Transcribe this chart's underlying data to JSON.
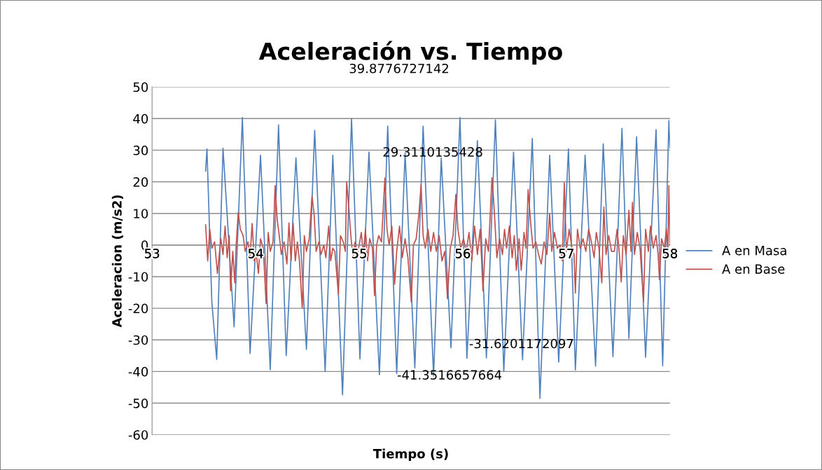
{
  "chart_data": {
    "type": "line",
    "title": "Aceleración vs. Tiempo",
    "xlabel": "Tiempo (s)",
    "ylabel": "Aceleracion (m/s2)",
    "xlim": [
      53,
      58
    ],
    "xticks": [
      53,
      54,
      55,
      56,
      57,
      58
    ],
    "ylim": [
      -60,
      50
    ],
    "yticks": [
      -60,
      -50,
      -40,
      -30,
      -20,
      -10,
      0,
      10,
      20,
      30,
      40,
      50
    ],
    "grid": "y",
    "legend": "right",
    "marker": "none",
    "line_style": "solid",
    "annotations": [
      "39.8776727142",
      "29.3110135428",
      "-31.6201172097",
      "-41.3516657664"
    ],
    "series": [
      {
        "name": "A en Masa",
        "color": "#4f81bd",
        "x": [
          53.517,
          53.53,
          53.577,
          53.624,
          53.685,
          53.792,
          53.872,
          53.946,
          54.047,
          54.141,
          54.221,
          54.295,
          54.389,
          54.49,
          54.57,
          54.671,
          54.745,
          54.839,
          54.926,
          55.007,
          55.094,
          55.195,
          55.275,
          55.362,
          55.443,
          55.537,
          55.617,
          55.718,
          55.792,
          55.886,
          55.973,
          56.04,
          56.141,
          56.228,
          56.315,
          56.396,
          56.49,
          56.577,
          56.671,
          56.745,
          56.839,
          56.926,
          57.02,
          57.087,
          57.181,
          57.282,
          57.356,
          57.45,
          57.537,
          57.604,
          57.678,
          57.765,
          57.866,
          57.93,
          57.99,
          58.0
        ],
        "values": [
          23.4,
          30.4,
          -18,
          -36.2,
          30.6,
          -25.9,
          40.3,
          -34.3,
          28.4,
          -39.4,
          38,
          -35,
          27.6,
          -33,
          36.3,
          -40,
          28.4,
          -47.4,
          40,
          -36,
          29.4,
          -41,
          37.6,
          -40.6,
          29,
          -38.9,
          37.6,
          -41.4,
          27.5,
          -32.5,
          40.3,
          -35.8,
          33,
          -35.7,
          39.6,
          -40,
          29.4,
          -36.3,
          33.7,
          -48.5,
          28.4,
          -37,
          30.4,
          -39.5,
          28.4,
          -38.3,
          32,
          -35.3,
          36.9,
          -29.5,
          34.2,
          -35.5,
          36.5,
          -38.2,
          39.4,
          30.7
        ]
      },
      {
        "name": "A en Base",
        "color": "#c0504d",
        "x": [
          53.517,
          53.537,
          53.557,
          53.577,
          53.604,
          53.631,
          53.664,
          53.685,
          53.705,
          53.725,
          53.745,
          53.758,
          53.779,
          53.799,
          53.812,
          53.832,
          53.852,
          53.879,
          53.899,
          53.926,
          53.946,
          53.966,
          53.987,
          54.007,
          54.027,
          54.047,
          54.074,
          54.101,
          54.121,
          54.141,
          54.168,
          54.188,
          54.208,
          54.228,
          54.248,
          54.275,
          54.302,
          54.322,
          54.342,
          54.362,
          54.383,
          54.403,
          54.423,
          54.45,
          54.47,
          54.49,
          54.517,
          54.544,
          54.564,
          54.584,
          54.611,
          54.631,
          54.658,
          54.678,
          54.705,
          54.725,
          54.745,
          54.765,
          54.799,
          54.819,
          54.846,
          54.866,
          54.879,
          54.899,
          54.919,
          54.94,
          54.96,
          54.98,
          55.0,
          55.02,
          55.04,
          55.06,
          55.081,
          55.101,
          55.128,
          55.148,
          55.168,
          55.188,
          55.215,
          55.248,
          55.268,
          55.289,
          55.315,
          55.342,
          55.362,
          55.389,
          55.416,
          55.443,
          55.47,
          55.503,
          55.523,
          55.55,
          55.577,
          55.597,
          55.617,
          55.638,
          55.664,
          55.691,
          55.718,
          55.745,
          55.772,
          55.799,
          55.826,
          55.852,
          55.879,
          55.906,
          55.933,
          55.953,
          55.98,
          56.007,
          56.034,
          56.06,
          56.087,
          56.114,
          56.141,
          56.168,
          56.195,
          56.221,
          56.248,
          56.282,
          56.302,
          56.329,
          56.356,
          56.383,
          56.403,
          56.423,
          56.45,
          56.477,
          56.497,
          56.517,
          56.544,
          56.564,
          56.591,
          56.611,
          56.631,
          56.658,
          56.678,
          56.705,
          56.732,
          56.758,
          56.785,
          56.812,
          56.839,
          56.859,
          56.886,
          56.913,
          56.94,
          56.96,
          56.98,
          57.0,
          57.027,
          57.054,
          57.074,
          57.087,
          57.107,
          57.134,
          57.161,
          57.188,
          57.215,
          57.242,
          57.268,
          57.289,
          57.315,
          57.342,
          57.362,
          57.383,
          57.409,
          57.436,
          57.463,
          57.49,
          57.51,
          57.53,
          57.55,
          57.577,
          57.604,
          57.624,
          57.638,
          57.658,
          57.685,
          57.711,
          57.745,
          57.765,
          57.792,
          57.812,
          57.839,
          57.866,
          57.886,
          57.899,
          57.919,
          57.946,
          57.966,
          57.98,
          57.99,
          58.0
        ],
        "values": [
          6.4,
          -5,
          5,
          -1,
          1,
          -9,
          2,
          -3,
          6,
          -4,
          3,
          -14.5,
          -2,
          -12,
          0,
          10.3,
          5,
          3,
          -2,
          1,
          -4,
          6.8,
          -5,
          -3,
          -9,
          2,
          -1,
          -18.5,
          4,
          -2,
          1,
          18.8,
          8,
          3,
          -3,
          1,
          -6,
          7,
          -5,
          7,
          -5,
          1,
          -5,
          -20,
          3,
          -2,
          2,
          15.4,
          10,
          -2,
          1,
          -3,
          0,
          -4,
          6,
          -5,
          -1,
          -2,
          -15.6,
          3,
          1,
          -2,
          20,
          12,
          3,
          -4,
          1,
          -3,
          0,
          4,
          -3,
          5,
          -5,
          2,
          -1,
          -16,
          0,
          3,
          1,
          21.2,
          5,
          0,
          6,
          -12.4,
          -2,
          6,
          -4,
          2,
          -4,
          -18,
          0,
          2,
          10,
          19,
          3,
          -1,
          5,
          -2,
          4,
          -2,
          3,
          -5,
          -2,
          -17,
          -1,
          3,
          16,
          5,
          -1,
          2,
          -2,
          4,
          -5,
          6,
          -3,
          5,
          -14.5,
          2,
          -2,
          21.3,
          12,
          -4,
          2,
          -3,
          5,
          -1,
          6,
          -4,
          3,
          -8,
          2,
          -8,
          4,
          -1,
          17.5,
          6,
          -1,
          1,
          -3,
          -6,
          1,
          -3,
          10,
          -2,
          4,
          -1,
          0,
          -5,
          19.7,
          -2,
          5,
          -1,
          -3,
          -15.2,
          5,
          -1,
          2,
          -2,
          5,
          1,
          -4,
          4,
          -1,
          -12,
          12,
          -3,
          3,
          -2,
          -2,
          5,
          -2,
          -11.7,
          3,
          -3,
          11,
          -2,
          13.5,
          -3,
          4,
          -1,
          -17.8,
          5,
          -2,
          6,
          -1,
          3,
          -3,
          -11,
          2,
          -1,
          5,
          -2,
          18.8,
          0
        ]
      }
    ]
  }
}
